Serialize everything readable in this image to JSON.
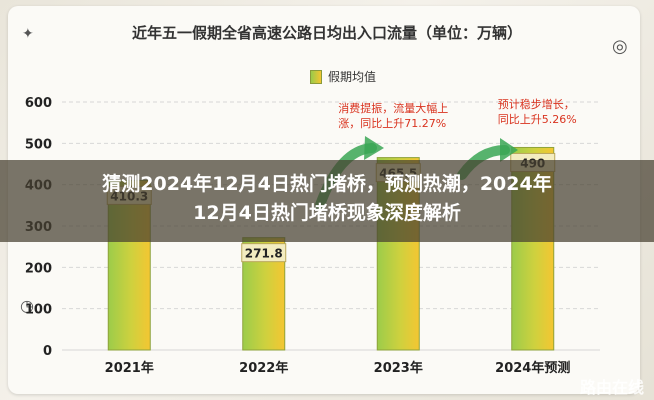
{
  "headline": {
    "line1": "猜测2024年12月4日热门堵桥，预测热潮，2024年",
    "line2": "12月4日热门堵桥现象深度解析"
  },
  "watermark": "路由在线",
  "annotations": [
    {
      "text_line1": "消费提振，流量大幅上",
      "text_line2": "涨，同比上升71.27%",
      "color": "#d9331f"
    },
    {
      "text_line1": "预计稳步增长，",
      "text_line2": "同比上升5.26%",
      "color": "#d9331f"
    }
  ],
  "colors": {
    "bar_green": "#9ccc4a",
    "bar_yellow": "#f4c632",
    "arrow_green": "#3aa655",
    "annotation_red": "#d9331f"
  },
  "chart_data": {
    "type": "bar",
    "title": "近年五一假期全省高速公路日均出入口流量（单位：万辆）",
    "legend": [
      "假期均值"
    ],
    "legend_position": "top-center",
    "categories": [
      "2021年",
      "2022年",
      "2023年",
      "2024年预测"
    ],
    "values": [
      410.3,
      271.8,
      465.5,
      490
    ],
    "value_labels": [
      "410.3",
      "271.8",
      "465.5",
      "490"
    ],
    "y_ticks": [
      "0",
      "100",
      "200",
      "300",
      "400",
      "500",
      "600"
    ],
    "ylim": [
      0,
      600
    ],
    "grid": true
  }
}
